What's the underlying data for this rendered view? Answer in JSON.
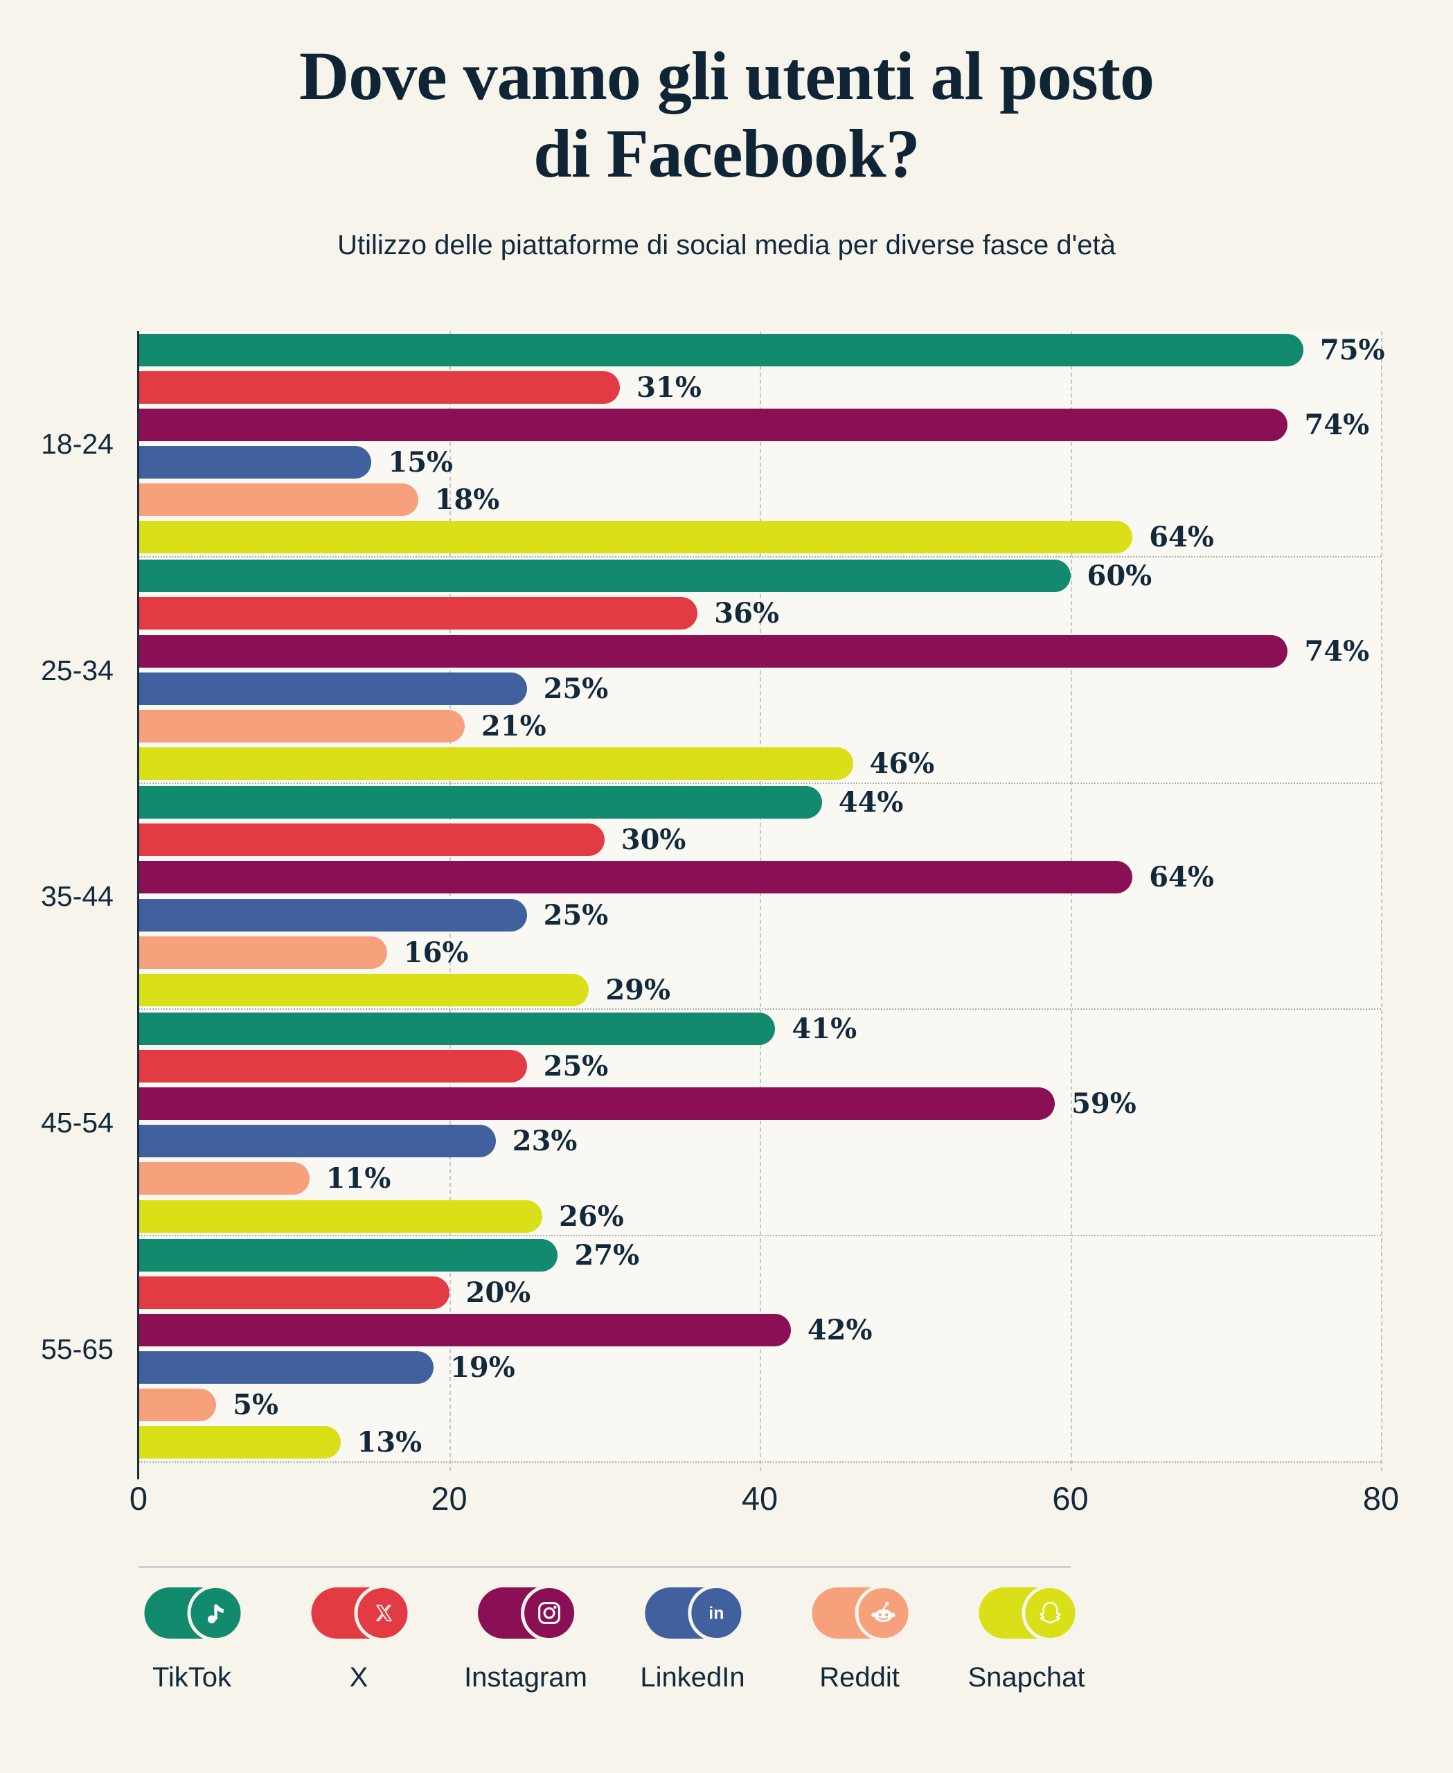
{
  "page": {
    "background": "#F7F4EC",
    "text_color": "#12293C"
  },
  "header": {
    "title_line1": "Dove vanno gli utenti al posto",
    "title_line2": "di Facebook?",
    "subtitle": "Utilizzo delle piattaforme di social media per diverse fasce d'età"
  },
  "chart_data": {
    "type": "bar",
    "orientation": "horizontal",
    "title": "Dove vanno gli utenti al posto di Facebook?",
    "subtitle": "Utilizzo delle piattaforme di social media per diverse fasce d'età",
    "categories": [
      "18-24",
      "25-34",
      "35-44",
      "45-54",
      "55-65"
    ],
    "series": [
      {
        "name": "TikTok",
        "icon": "tiktok-icon",
        "color": "#128A6E",
        "values": [
          75,
          60,
          44,
          41,
          27
        ]
      },
      {
        "name": "X",
        "icon": "x-icon",
        "color": "#E23B43",
        "values": [
          31,
          36,
          30,
          25,
          20
        ]
      },
      {
        "name": "Instagram",
        "icon": "instagram-icon",
        "color": "#8A0F55",
        "values": [
          74,
          74,
          64,
          59,
          42
        ]
      },
      {
        "name": "LinkedIn",
        "icon": "linkedin-icon",
        "color": "#40609E",
        "values": [
          15,
          25,
          25,
          23,
          19
        ]
      },
      {
        "name": "Reddit",
        "icon": "reddit-icon",
        "color": "#F6A17C",
        "values": [
          18,
          21,
          16,
          11,
          5
        ]
      },
      {
        "name": "Snapchat",
        "icon": "snapchat-icon",
        "color": "#D9E018",
        "values": [
          64,
          46,
          29,
          26,
          13
        ]
      }
    ],
    "value_suffix": "%",
    "xlim": [
      0,
      80
    ],
    "x_ticks": [
      0,
      20,
      40,
      60,
      80
    ],
    "grid": "vertical-dashed",
    "legend_position": "bottom"
  }
}
